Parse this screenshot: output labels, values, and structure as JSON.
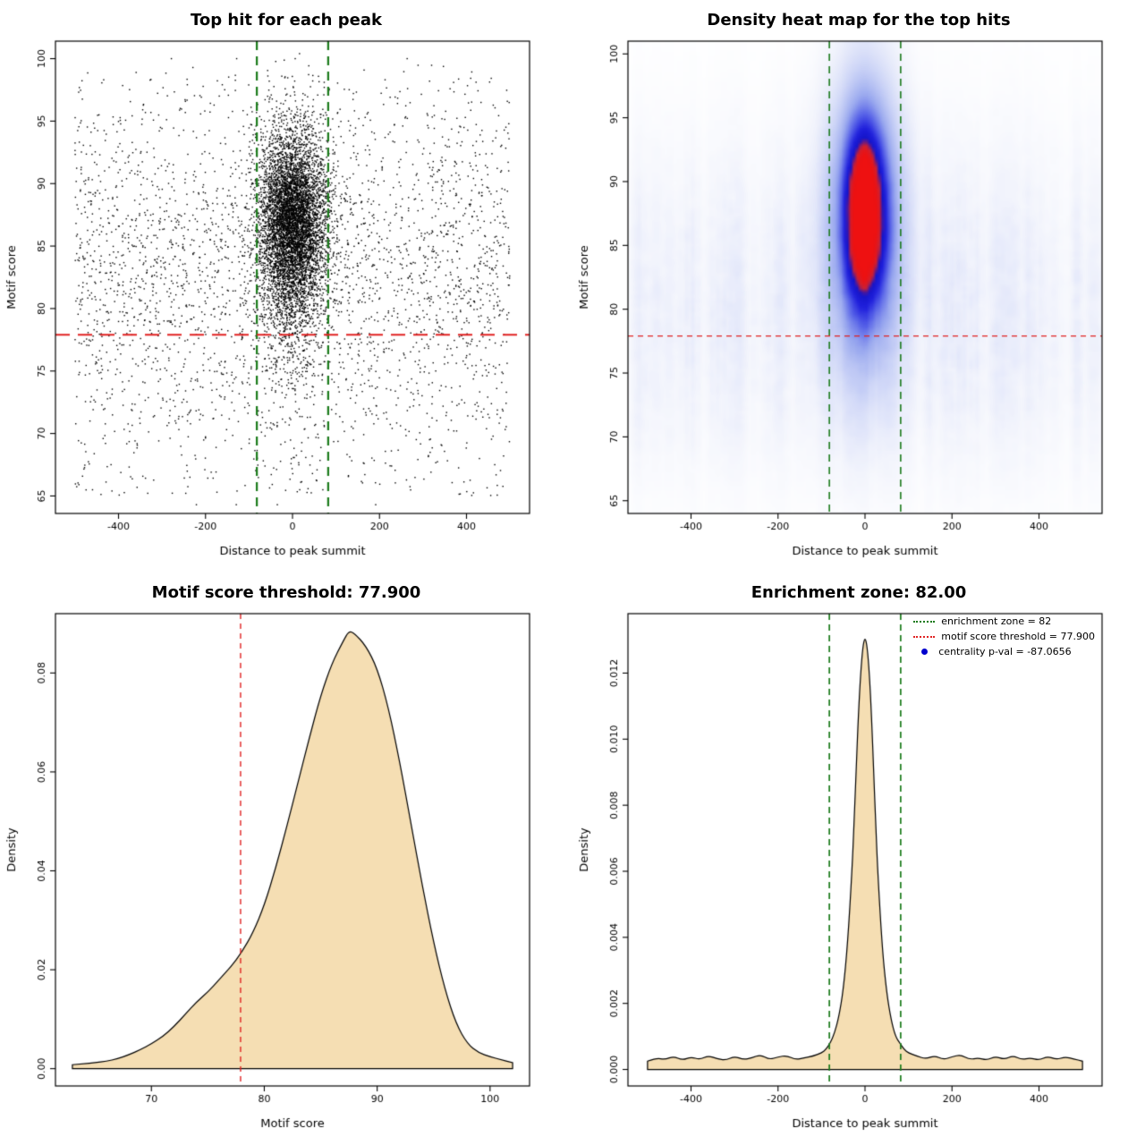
{
  "figure": {
    "background": "#ffffff",
    "panel_size": 640
  },
  "chart_data": [
    {
      "type": "scatter",
      "title": "Top hit for each peak",
      "xlabel": "Distance to peak summit",
      "ylabel": "Motif score",
      "xlim": [
        -545,
        545
      ],
      "ylim": [
        63.6,
        101.4
      ],
      "xticks": [
        -400,
        -200,
        0,
        200,
        400
      ],
      "xtick_labels": [
        "-400",
        "-200",
        "0",
        "200",
        "400"
      ],
      "yticks": [
        65,
        70,
        75,
        80,
        85,
        90,
        95,
        100
      ],
      "ytick_labels": [
        "65",
        "70",
        "75",
        "80",
        "85",
        "90",
        "95",
        "100"
      ],
      "point_color": "#000000",
      "seed": 42,
      "distribution": {
        "cluster": {
          "n": 6500,
          "x_mean": 0,
          "x_sd": 38,
          "y_mean": 87,
          "y_sd": 3.5,
          "tail_frac": 0.18,
          "tail_y_mean": 83,
          "tail_y_sd": 5.5
        },
        "background": {
          "n": 3000,
          "x_min": -500,
          "x_max": 500,
          "y_mean": 83,
          "y_sd": 6.2,
          "y_min": 64.3,
          "y_max": 100
        }
      },
      "vlines": {
        "x": [
          -82,
          82
        ],
        "color": "#1a7a1a",
        "width": 2.2,
        "dash": [
          10,
          7
        ]
      },
      "hlines": {
        "y": [
          77.9
        ],
        "color": "#e02222",
        "width": 2,
        "dash": [
          16,
          9
        ]
      }
    },
    {
      "type": "heatmap",
      "title": "Density heat map for the top hits",
      "xlabel": "Distance to peak summit",
      "ylabel": "Motif score",
      "xlim": [
        -545,
        545
      ],
      "ylim": [
        64,
        101
      ],
      "xticks": [
        -400,
        -200,
        0,
        200,
        400
      ],
      "xtick_labels": [
        "-400",
        "-200",
        "0",
        "200",
        "400"
      ],
      "yticks": [
        65,
        70,
        75,
        80,
        85,
        90,
        95,
        100
      ],
      "ytick_labels": [
        "65",
        "70",
        "75",
        "80",
        "85",
        "90",
        "95",
        "100"
      ],
      "seed": 7,
      "blob": {
        "x_center": 0,
        "y_center": 87.6,
        "x_sd": 30,
        "y_sd": 4.6,
        "halo_x_sd": 58,
        "halo_y_sd": 7.8,
        "halo_amp": 0.5
      },
      "colormap": [
        [
          0,
          "#ffffff"
        ],
        [
          0.06,
          "#f2f4fc"
        ],
        [
          0.2,
          "#ccd4f7"
        ],
        [
          0.38,
          "#99a8ef"
        ],
        [
          0.55,
          "#5560e8"
        ],
        [
          0.7,
          "#2020dd"
        ],
        [
          0.84,
          "#1414c8"
        ],
        [
          0.92,
          "#cc2233"
        ],
        [
          1,
          "#ee1111"
        ]
      ],
      "vlines": {
        "x": [
          -82,
          82
        ],
        "color": "#1a7a1a",
        "width": 1.6,
        "dash": [
          8,
          6
        ]
      },
      "hlines": {
        "y": [
          77.9
        ],
        "color": "#e02222",
        "width": 1.2,
        "dash": [
          6,
          5
        ]
      }
    },
    {
      "type": "area",
      "title": "Motif score threshold: 77.900",
      "xlabel": "Motif score",
      "ylabel": "Density",
      "xlim": [
        61.5,
        103.5
      ],
      "ylim": [
        -0.0035,
        0.092
      ],
      "xticks": [
        70,
        80,
        90,
        100
      ],
      "xtick_labels": [
        "70",
        "80",
        "90",
        "100"
      ],
      "yticks": [
        0,
        0.02,
        0.04,
        0.06,
        0.08
      ],
      "ytick_labels": [
        "0.00",
        "0.02",
        "0.04",
        "0.06",
        "0.08"
      ],
      "fill": "#f5deb3",
      "line_color": "#000000",
      "points": [
        [
          63,
          0.0008
        ],
        [
          64,
          0.001
        ],
        [
          65,
          0.0012
        ],
        [
          66,
          0.0015
        ],
        [
          67,
          0.002
        ],
        [
          68,
          0.0028
        ],
        [
          69,
          0.0038
        ],
        [
          70,
          0.005
        ],
        [
          71,
          0.0065
        ],
        [
          72,
          0.0085
        ],
        [
          73,
          0.011
        ],
        [
          74,
          0.0135
        ],
        [
          75,
          0.0155
        ],
        [
          76,
          0.018
        ],
        [
          77,
          0.0205
        ],
        [
          78,
          0.0235
        ],
        [
          79,
          0.0275
        ],
        [
          80,
          0.033
        ],
        [
          81,
          0.0405
        ],
        [
          82,
          0.049
        ],
        [
          83,
          0.058
        ],
        [
          84,
          0.067
        ],
        [
          85,
          0.0755
        ],
        [
          86,
          0.082
        ],
        [
          87,
          0.0865
        ],
        [
          87.5,
          0.0885
        ],
        [
          88,
          0.088
        ],
        [
          89,
          0.0855
        ],
        [
          90,
          0.081
        ],
        [
          91,
          0.073
        ],
        [
          92,
          0.062
        ],
        [
          93,
          0.0495
        ],
        [
          94,
          0.037
        ],
        [
          95,
          0.0255
        ],
        [
          96,
          0.016
        ],
        [
          97,
          0.009
        ],
        [
          98,
          0.005
        ],
        [
          99,
          0.0032
        ],
        [
          100,
          0.0024
        ],
        [
          101,
          0.0018
        ],
        [
          102,
          0.0012
        ]
      ],
      "vlines": {
        "x": [
          77.9
        ],
        "color": "#e02222",
        "width": 1.4,
        "dash": [
          6,
          5
        ]
      }
    },
    {
      "type": "area",
      "title": "Enrichment zone: 82.00",
      "xlabel": "Distance to peak summit",
      "ylabel": "Density",
      "xlim": [
        -545,
        545
      ],
      "ylim": [
        -0.0005,
        0.0138
      ],
      "xticks": [
        -400,
        -200,
        0,
        200,
        400
      ],
      "xtick_labels": [
        "-400",
        "-200",
        "0",
        "200",
        "400"
      ],
      "yticks": [
        0,
        0.002,
        0.004,
        0.006,
        0.008,
        0.01,
        0.012
      ],
      "ytick_labels": [
        "0.000",
        "0.002",
        "0.004",
        "0.006",
        "0.008",
        "0.010",
        "0.012"
      ],
      "fill": "#f5deb3",
      "line_color": "#000000",
      "points": [
        [
          -500,
          0.00025
        ],
        [
          -480,
          0.00035
        ],
        [
          -460,
          0.0003
        ],
        [
          -440,
          0.0004
        ],
        [
          -420,
          0.00028
        ],
        [
          -400,
          0.00038
        ],
        [
          -380,
          0.0003
        ],
        [
          -360,
          0.00042
        ],
        [
          -340,
          0.00032
        ],
        [
          -320,
          0.00028
        ],
        [
          -300,
          0.0004
        ],
        [
          -280,
          0.0003
        ],
        [
          -260,
          0.00035
        ],
        [
          -240,
          0.00045
        ],
        [
          -220,
          0.0003
        ],
        [
          -200,
          0.00038
        ],
        [
          -180,
          0.00042
        ],
        [
          -160,
          0.0003
        ],
        [
          -140,
          0.00035
        ],
        [
          -120,
          0.0004
        ],
        [
          -100,
          0.0005
        ],
        [
          -90,
          0.0006
        ],
        [
          -80,
          0.0008
        ],
        [
          -70,
          0.0011
        ],
        [
          -60,
          0.0016
        ],
        [
          -50,
          0.0024
        ],
        [
          -40,
          0.0038
        ],
        [
          -30,
          0.006
        ],
        [
          -25,
          0.0075
        ],
        [
          -20,
          0.0092
        ],
        [
          -15,
          0.0108
        ],
        [
          -10,
          0.012
        ],
        [
          -5,
          0.0128
        ],
        [
          0,
          0.0131
        ],
        [
          5,
          0.0128
        ],
        [
          10,
          0.012
        ],
        [
          15,
          0.0107
        ],
        [
          20,
          0.009
        ],
        [
          25,
          0.0073
        ],
        [
          30,
          0.0058
        ],
        [
          40,
          0.0036
        ],
        [
          50,
          0.0023
        ],
        [
          60,
          0.0015
        ],
        [
          70,
          0.001
        ],
        [
          80,
          0.0008
        ],
        [
          90,
          0.0006
        ],
        [
          100,
          0.0005
        ],
        [
          120,
          0.0004
        ],
        [
          140,
          0.00032
        ],
        [
          160,
          0.00042
        ],
        [
          180,
          0.0003
        ],
        [
          200,
          0.00038
        ],
        [
          220,
          0.00045
        ],
        [
          240,
          0.0003
        ],
        [
          260,
          0.00035
        ],
        [
          280,
          0.00028
        ],
        [
          300,
          0.0004
        ],
        [
          320,
          0.0003
        ],
        [
          340,
          0.00042
        ],
        [
          360,
          0.0003
        ],
        [
          380,
          0.00035
        ],
        [
          400,
          0.00028
        ],
        [
          420,
          0.0004
        ],
        [
          440,
          0.0003
        ],
        [
          460,
          0.00038
        ],
        [
          480,
          0.00032
        ],
        [
          500,
          0.00025
        ]
      ],
      "vlines": {
        "x": [
          -82,
          82
        ],
        "color": "#1a7a1a",
        "width": 1.7,
        "dash": [
          7,
          5
        ]
      },
      "legend": [
        {
          "label": "enrichment zone = 82",
          "marker": "dotted-line",
          "color": "#1a7a1a"
        },
        {
          "label": "motif score threshold = 77.900",
          "marker": "dotted-line",
          "color": "#e02222"
        },
        {
          "label": "centrality p-val = -87.0656",
          "marker": "dot",
          "color": "#0000cd"
        }
      ]
    }
  ]
}
